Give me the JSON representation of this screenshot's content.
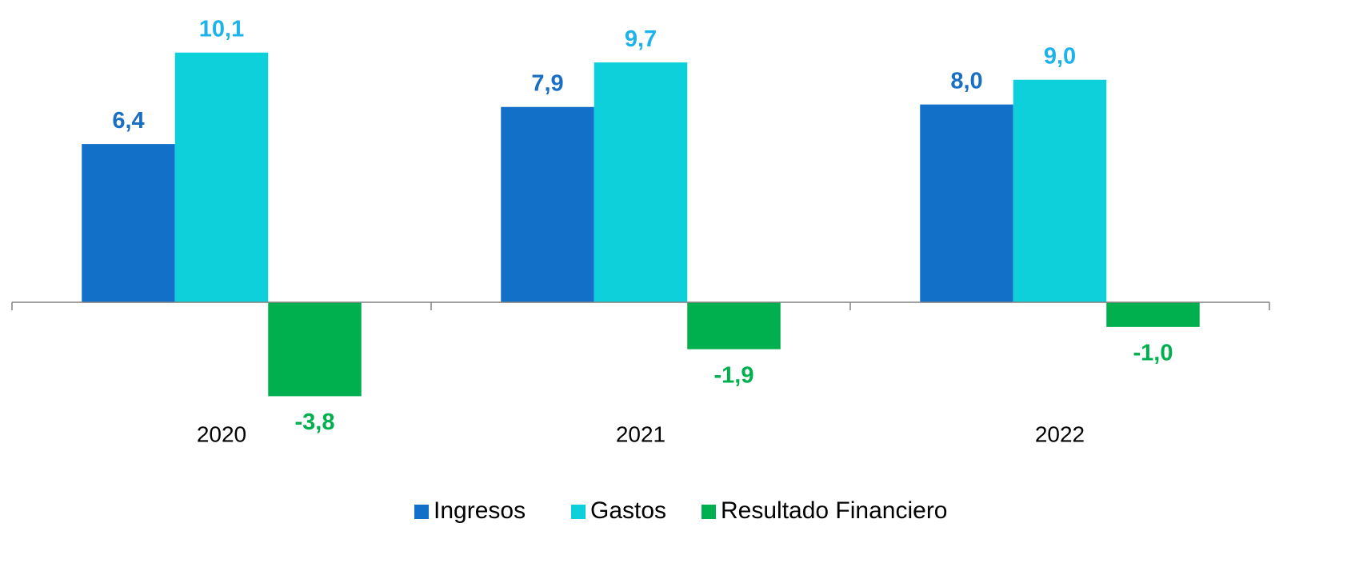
{
  "chart_data": {
    "type": "bar",
    "categories": [
      "2020",
      "2021",
      "2022"
    ],
    "series": [
      {
        "name": "Ingresos",
        "color": "#1270c8",
        "label_color": "#1a6fc4",
        "values": [
          6.4,
          7.9,
          8.0
        ],
        "value_labels": [
          "6,4",
          "7,9",
          "8,0"
        ]
      },
      {
        "name": "Gastos",
        "color": "#0dd0da",
        "label_color": "#1cb2ea",
        "values": [
          10.1,
          9.7,
          9.0
        ],
        "value_labels": [
          "10,1",
          "9,7",
          "9,0"
        ]
      },
      {
        "name": "Resultado Financiero",
        "color": "#00b04f",
        "label_color": "#00b04f",
        "values": [
          -3.8,
          -1.9,
          -1.0
        ],
        "value_labels": [
          "-3,8",
          "-1,9",
          "-1,0"
        ]
      }
    ],
    "ylim": [
      -5,
      12
    ],
    "legend": "bottom"
  }
}
